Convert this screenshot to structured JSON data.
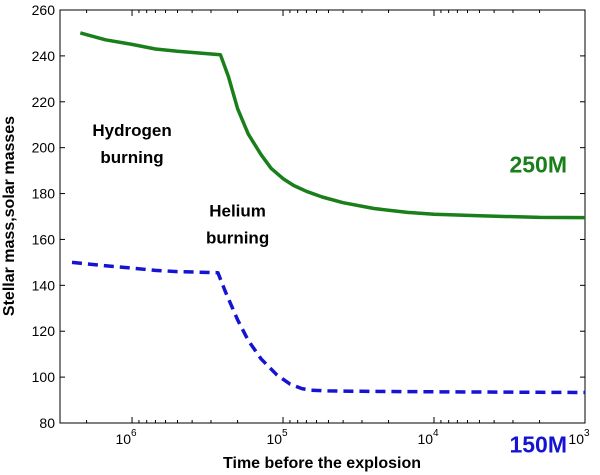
{
  "chart_data": {
    "type": "line",
    "xlabel": "Time before the explosion",
    "ylabel": "Stellar mass,solar masses",
    "x_scale": "log",
    "x_reversed": true,
    "xlim": [
      3000000,
      1000
    ],
    "ylim": [
      80,
      260
    ],
    "y_ticks": [
      80,
      100,
      120,
      140,
      160,
      180,
      200,
      220,
      240,
      260
    ],
    "x_ticks": [
      {
        "value": 1000000,
        "base": "10",
        "exponent": "6"
      },
      {
        "value": 100000,
        "base": "10",
        "exponent": "5"
      },
      {
        "value": 10000,
        "base": "10",
        "exponent": "4"
      },
      {
        "value": 1000,
        "base": "10",
        "exponent": "3"
      }
    ],
    "grid": false,
    "series": [
      {
        "name": "250M",
        "color": "#1a7f1a",
        "style": "solid",
        "x": [
          2200000,
          1500000,
          1000000,
          700000,
          500000,
          260000,
          230000,
          200000,
          170000,
          140000,
          120000,
          100000,
          85000,
          70000,
          55000,
          40000,
          25000,
          15000,
          10000,
          5000,
          2000,
          1000
        ],
        "y": [
          250,
          247,
          245,
          243,
          242,
          240.5,
          231,
          217,
          206,
          197,
          191,
          186.5,
          183.5,
          181,
          178.5,
          176,
          173.5,
          171.8,
          171,
          170.3,
          169.6,
          169.5
        ]
      },
      {
        "name": "150M",
        "color": "#1414d2",
        "style": "dashed",
        "x": [
          2500000,
          1500000,
          1000000,
          700000,
          500000,
          270000,
          240000,
          200000,
          170000,
          140000,
          110000,
          90000,
          75000,
          65000,
          50000,
          30000,
          10000,
          5000,
          2000,
          1000
        ],
        "y": [
          150,
          148.5,
          147.5,
          146.5,
          146,
          145.5,
          137,
          125,
          116,
          108,
          101,
          97,
          95,
          94.3,
          94,
          93.8,
          93.6,
          93.5,
          93.4,
          93.3
        ]
      }
    ],
    "annotations": [
      {
        "lines": [
          "Hydrogen",
          "burning"
        ],
        "x": 1000000,
        "y": 205
      },
      {
        "lines": [
          "Helium",
          "burning"
        ],
        "x": 200000,
        "y": 170
      }
    ]
  }
}
